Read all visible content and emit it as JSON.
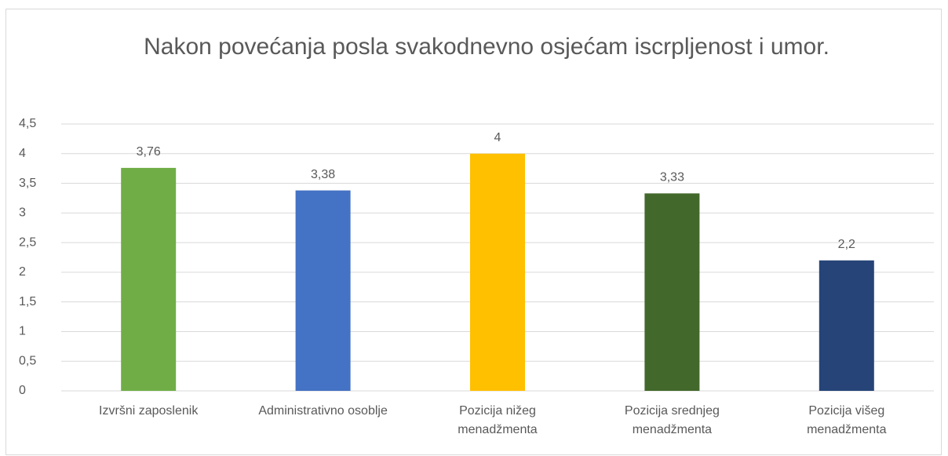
{
  "chart_data": {
    "type": "bar",
    "title": "Nakon povećanja posla svakodnevno osjećam iscrpljenost i umor.",
    "categories": [
      "Izvršni zaposlenik",
      "Administrativno osoblje",
      "Pozicija nižeg menadžmenta",
      "Pozicija srednjeg menadžmenta",
      "Pozicija višeg menadžmenta"
    ],
    "values": [
      3.76,
      3.38,
      4,
      3.33,
      2.2
    ],
    "value_labels": [
      "3,76",
      "3,38",
      "4",
      "3,33",
      "2,2"
    ],
    "colors": [
      "#70ad47",
      "#4472c4",
      "#ffc000",
      "#43682b",
      "#264478"
    ],
    "ylim": [
      0,
      4.5
    ],
    "yticks": [
      0,
      {
        "value": 0.5,
        "label": "0,5"
      },
      1,
      {
        "value": 1.5,
        "label": "1,5"
      },
      2,
      {
        "value": 2.5,
        "label": "2,5"
      },
      3,
      {
        "value": 3.5,
        "label": "3,5"
      },
      4,
      {
        "value": 4.5,
        "label": "4,5"
      }
    ],
    "grid": true
  }
}
